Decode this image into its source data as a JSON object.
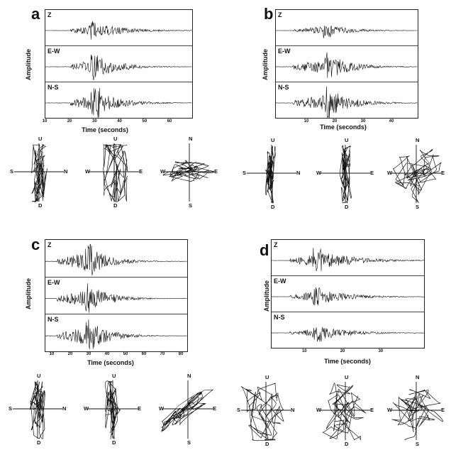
{
  "panels": [
    {
      "id": "a",
      "traces": [
        {
          "label": "Z"
        },
        {
          "label": "E-W"
        },
        {
          "label": "N-S"
        }
      ],
      "ylabel": "Amplitude",
      "xlabel": "Time (seconds)",
      "xticks": [
        "10",
        "20",
        "30",
        "40",
        "50",
        "60"
      ],
      "hodograms": [
        {
          "top": "U",
          "bottom": "D",
          "left": "S",
          "right": "N"
        },
        {
          "top": "U",
          "bottom": "D",
          "left": "W",
          "right": "E"
        },
        {
          "top": "N",
          "bottom": "S",
          "left": "W",
          "right": "E"
        }
      ]
    },
    {
      "id": "b",
      "traces": [
        {
          "label": "Z"
        },
        {
          "label": "E-W"
        },
        {
          "label": "N-S"
        }
      ],
      "ylabel": "Amplitude",
      "xlabel": "Time (seconds)",
      "xticks": [
        "10",
        "20",
        "30",
        "40"
      ],
      "hodograms": [
        {
          "top": "U",
          "bottom": "D",
          "left": "S",
          "right": "N"
        },
        {
          "top": "U",
          "bottom": "D",
          "left": "W",
          "right": "E"
        },
        {
          "top": "N",
          "bottom": "S",
          "left": "W",
          "right": "E"
        }
      ]
    },
    {
      "id": "c",
      "traces": [
        {
          "label": "Z"
        },
        {
          "label": "E-W"
        },
        {
          "label": "N-S"
        }
      ],
      "ylabel": "Amplitude",
      "xlabel": "Time (seconds)",
      "xticks": [
        "10",
        "20",
        "30",
        "40",
        "50",
        "60",
        "70",
        "80"
      ],
      "hodograms": [
        {
          "top": "U",
          "bottom": "D",
          "left": "S",
          "right": "N"
        },
        {
          "top": "U",
          "bottom": "D",
          "left": "W",
          "right": "E"
        },
        {
          "top": "N",
          "bottom": "S",
          "left": "W",
          "right": "E"
        }
      ]
    },
    {
      "id": "d",
      "traces": [
        {
          "label": "Z"
        },
        {
          "label": "E-W"
        },
        {
          "label": "N-S"
        }
      ],
      "ylabel": "Amplitude",
      "xlabel": "Time (seconds)",
      "xticks": [
        "10",
        "20",
        "30"
      ],
      "hodograms": [
        {
          "top": "U",
          "bottom": "D",
          "left": "S",
          "right": "N"
        },
        {
          "top": "U",
          "bottom": "D",
          "left": "W",
          "right": "E"
        },
        {
          "top": "N",
          "bottom": "S",
          "left": "W",
          "right": "E"
        }
      ]
    }
  ]
}
